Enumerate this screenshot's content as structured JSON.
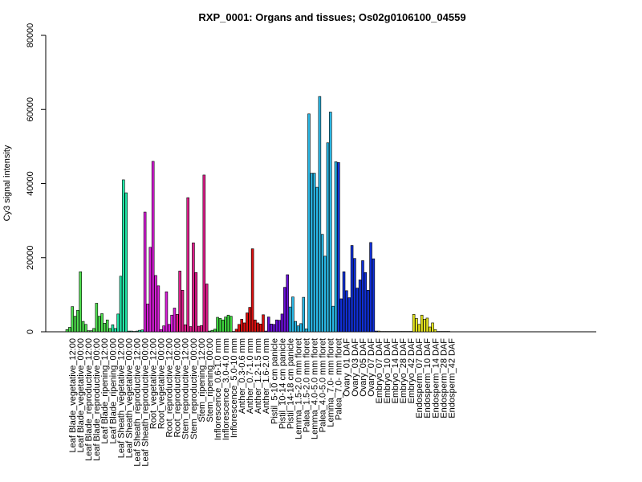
{
  "chart_data": {
    "type": "bar",
    "title": "RXP_0001: Organs and tissues; Os02g0106100_04559",
    "xlabel": "",
    "ylabel": "Cy3 signal intensity",
    "ylim": [
      0,
      80000
    ],
    "yticks": [
      0,
      20000,
      40000,
      60000,
      80000
    ],
    "grid": false,
    "groups": [
      {
        "label": "Leaf Blade_vegetative_12:00",
        "color": "#4fe04f",
        "values": [
          600,
          1200
        ]
      },
      {
        "label": "Leaf Blade_vegetative_00:00",
        "color": "#4fe04f",
        "values": [
          6800,
          4200,
          5800
        ]
      },
      {
        "label": "Leaf Blade_reproductive_12:00",
        "color": "#4fe04f",
        "values": [
          16200,
          2800,
          2000
        ]
      },
      {
        "label": "Leaf Blade_reproductive_00:00",
        "color": "#4fe04f",
        "values": [
          300,
          300,
          900
        ]
      },
      {
        "label": "Leaf Blade_ripening_12:00",
        "color": "#4fe04f",
        "values": [
          7700,
          4200,
          4900
        ]
      },
      {
        "label": "Leaf Blade_ripening_00:00",
        "color": "#4fe04f",
        "values": [
          2300,
          3200,
          900
        ]
      },
      {
        "label": "Leaf Sheath_vegetative_12:00",
        "color": "#22e8a8",
        "values": [
          1900,
          900,
          4800
        ]
      },
      {
        "label": "Leaf Sheath_vegetative_00:00",
        "color": "#22e8a8",
        "values": [
          15000,
          41000,
          37500
        ]
      },
      {
        "label": "Leaf Sheath_reproductive_12:00",
        "color": "#22e8a8",
        "values": [
          200,
          200,
          100
        ]
      },
      {
        "label": "Leaf Sheath_reproductive_00:00",
        "color": "#22e8a8",
        "values": [
          200,
          400,
          500
        ]
      },
      {
        "label": "Root_vegetative_12:00",
        "color": "#d81ed8",
        "values": [
          32300,
          7500,
          22800
        ]
      },
      {
        "label": "Root_vegetative_00:00",
        "color": "#d81ed8",
        "values": [
          46000,
          15200,
          12400
        ]
      },
      {
        "label": "Root_reproductive_12:00",
        "color": "#d81ed8",
        "values": [
          600,
          1600,
          10800
        ]
      },
      {
        "label": "Root_reproductive_00:00",
        "color": "#d81ed8",
        "values": [
          2000,
          4500,
          6400
        ]
      },
      {
        "label": "Stem_reproductive_12:00",
        "color": "#e01e8c",
        "values": [
          4700,
          16400,
          11200
        ]
      },
      {
        "label": "Stem_reproductive_00:00",
        "color": "#e01e8c",
        "values": [
          1900,
          36200,
          1400
        ]
      },
      {
        "label": "Stem_ripening_12:00",
        "color": "#e01e8c",
        "values": [
          24000,
          16000,
          1500
        ]
      },
      {
        "label": "Stem_ripening_00:00",
        "color": "#e01e8c",
        "values": [
          1700,
          42300,
          12900
        ]
      },
      {
        "label": "Inflorescence_0.6-1.0 mm",
        "color": "#3ed83e",
        "values": [
          200,
          400,
          700
        ]
      },
      {
        "label": "Inflorescence_3.0-4.0 mm",
        "color": "#3ed83e",
        "values": [
          3900,
          3600,
          3200
        ]
      },
      {
        "label": "Inflorescence_5.0-10 mm",
        "color": "#3ed83e",
        "values": [
          4000,
          4500,
          4200
        ]
      },
      {
        "label": "Anther_0.3-0.6 mm",
        "color": "#dd1010",
        "values": [
          100,
          700,
          2000
        ]
      },
      {
        "label": "Anther_0.7-1.0 mm",
        "color": "#dd1010",
        "values": [
          3400,
          2400,
          5100
        ]
      },
      {
        "label": "Anther_1.2-1.5 mm",
        "color": "#dd1010",
        "values": [
          6600,
          22400,
          3200
        ]
      },
      {
        "label": "Anther_1.6-2.0 mm",
        "color": "#dd1010",
        "values": [
          2400,
          2100,
          4600
        ]
      },
      {
        "label": "Pistil_5-10 cm panicle",
        "color": "#6a10d8",
        "values": [
          200,
          4000,
          2100
        ]
      },
      {
        "label": "Pistil_10-14 cm panicle",
        "color": "#6a10d8",
        "values": [
          2000,
          3200,
          3100
        ]
      },
      {
        "label": "Pistil_14-18 cm panicle",
        "color": "#6a10d8",
        "values": [
          4800,
          12000,
          15400
        ]
      },
      {
        "label": "Lemma_1.5-2.0 mm floret",
        "color": "#2ab8e6",
        "values": [
          6700,
          9400,
          2800
        ]
      },
      {
        "label": "Palea_1.5-2.0 mm floret",
        "color": "#2ab8e6",
        "values": [
          1600,
          2200,
          9300
        ]
      },
      {
        "label": "Lemma_4.0-5.0 mm floret",
        "color": "#2ab8e6",
        "values": [
          800,
          58800,
          42800
        ]
      },
      {
        "label": "Palea_4.0-5.0 mm floret",
        "color": "#2ab8e6",
        "values": [
          42800,
          39000,
          63500
        ]
      },
      {
        "label": "Lemma_7.0- mm floret",
        "color": "#2ab8e6",
        "values": [
          26300,
          20400,
          51000
        ]
      },
      {
        "label": "Palea_7.0- mm floret",
        "color": "#2ab8e6",
        "values": [
          59300,
          6900,
          45900
        ]
      },
      {
        "label": "Ovary_01 DAF",
        "color": "#1030d8",
        "values": [
          45700,
          8900,
          16200
        ]
      },
      {
        "label": "Ovary_03 DAF",
        "color": "#1030d8",
        "values": [
          11100,
          9200,
          23300
        ]
      },
      {
        "label": "Ovary_05 DAF",
        "color": "#1030d8",
        "values": [
          19800,
          11800,
          14000
        ]
      },
      {
        "label": "Ovary_07 DAF",
        "color": "#1030d8",
        "values": [
          19200,
          16000,
          11200
        ]
      },
      {
        "label": "Embryo_07 DAF",
        "color": "#1030d8",
        "values": [
          24100,
          19700,
          200
        ]
      },
      {
        "label": "Embryo_10 DAF",
        "color": "#e8e81e",
        "values": [
          200,
          100,
          100
        ]
      },
      {
        "label": "Embryo_14 DAF",
        "color": "#e8e81e",
        "values": [
          100,
          100,
          100
        ]
      },
      {
        "label": "Embryo_28 DAF",
        "color": "#e8e81e",
        "values": [
          100,
          100,
          100
        ]
      },
      {
        "label": "Embryo_42 DAF",
        "color": "#e8e81e",
        "values": [
          100,
          100,
          100
        ]
      },
      {
        "label": "Endosperm_07 DAF",
        "color": "#e8e81e",
        "values": [
          100,
          4700,
          3600
        ]
      },
      {
        "label": "Endosperm_10 DAF",
        "color": "#e8e81e",
        "values": [
          2000,
          4500,
          3400
        ]
      },
      {
        "label": "Endosperm_14 DAF",
        "color": "#e8e81e",
        "values": [
          3700,
          1300,
          2400
        ]
      },
      {
        "label": "Endosperm_28 DAF",
        "color": "#e8e81e",
        "values": [
          600,
          100,
          100
        ]
      },
      {
        "label": "Endosperm_42 DAF",
        "color": "#e8e81e",
        "values": [
          100,
          100,
          100
        ]
      }
    ]
  }
}
